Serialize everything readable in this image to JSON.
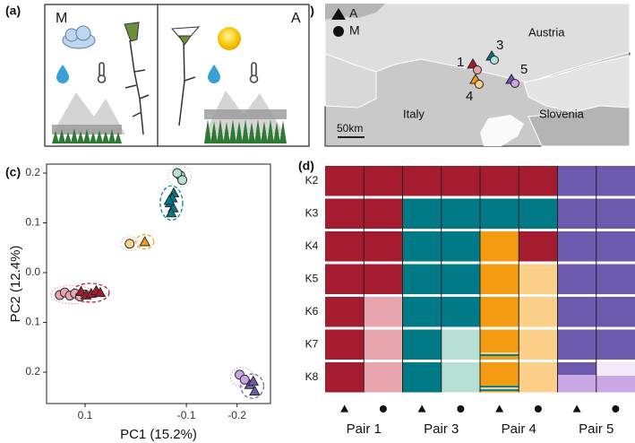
{
  "panel_labels": [
    "(a)",
    "(b)",
    "(c)",
    "(d)"
  ],
  "panel_a": {
    "left": "M",
    "right": "A"
  },
  "panel_b": {
    "legend": [
      "A",
      "M"
    ],
    "countries": [
      "Austria",
      "Italy",
      "Slovenia"
    ],
    "scale": "50km",
    "sites": [
      "1",
      "3",
      "4",
      "5"
    ]
  },
  "chart_data": [
    {
      "type": "scatter",
      "xlabel": "PC1 (15.2%)",
      "ylabel": "PC2 (12.4%)",
      "xlim": [
        0.176,
        -0.266
      ],
      "ylim": [
        -0.263,
        0.218
      ],
      "xticks": [
        0.1,
        -0.1,
        -0.2
      ],
      "yticks": [
        0.2,
        0.1,
        {
          "value": 0,
          "label": "0.0"
        },
        {
          "value": -0.1,
          "label": "0.1"
        },
        {
          "value": -0.2,
          "label": "0.2"
        }
      ],
      "series": [
        {
          "color": "#e8a5ae",
          "marker": "circle",
          "x": [
            0.15,
            0.14,
            0.13,
            0.12,
            0.11,
            0.1
          ],
          "y": [
            -0.045,
            -0.04,
            -0.046,
            -0.042,
            -0.048,
            -0.044
          ]
        },
        {
          "color": "#a51c30",
          "marker": "triangle",
          "x": [
            0.108,
            0.098,
            0.088,
            0.078,
            0.07
          ],
          "y": [
            -0.038,
            -0.045,
            -0.042,
            -0.036,
            -0.04
          ]
        },
        {
          "color": "#fcd088",
          "marker": "circle",
          "x": [
            0.012
          ],
          "y": [
            0.058
          ]
        },
        {
          "color": "#f39c12",
          "marker": "triangle",
          "x": [
            -0.018
          ],
          "y": [
            0.062
          ]
        },
        {
          "color": "#b5e0d3",
          "marker": "circle",
          "x": [
            -0.088,
            -0.082,
            -0.092
          ],
          "y": [
            0.195,
            0.2,
            0.186
          ]
        },
        {
          "color": "#007a87",
          "marker": "triangle",
          "x": [
            -0.075,
            -0.072,
            -0.068,
            -0.074,
            -0.07,
            -0.066
          ],
          "y": [
            0.16,
            0.15,
            0.14,
            0.13,
            0.12,
            0.145
          ]
        },
        {
          "color": "#c9a6e4",
          "marker": "circle",
          "x": [
            -0.205,
            -0.215
          ],
          "y": [
            -0.205,
            -0.215
          ]
        },
        {
          "color": "#6b5aad",
          "marker": "triangle",
          "x": [
            -0.225,
            -0.235,
            -0.232
          ],
          "y": [
            -0.225,
            -0.238,
            -0.218
          ]
        }
      ]
    },
    {
      "type": "admixture",
      "colors": [
        "#a51c30",
        "#007a87",
        "#f39c12",
        "#6b5aad",
        "#e8a5ae",
        "#fcd088",
        "#b5e0d3",
        "#c9a6e4",
        "#f1eaf8"
      ],
      "columns": [
        "A",
        "M",
        "A",
        "M",
        "A",
        "M",
        "A",
        "M"
      ],
      "pairs": [
        "Pair 1",
        "Pair 3",
        "Pair 4",
        "Pair 5"
      ],
      "rows": [
        {
          "name": "K2",
          "cells": [
            {
              "clusters": [
                0
              ],
              "values": [
                1
              ]
            },
            {
              "clusters": [
                0
              ],
              "values": [
                1
              ]
            },
            {
              "clusters": [
                0
              ],
              "values": [
                1
              ]
            },
            {
              "clusters": [
                0
              ],
              "values": [
                1
              ]
            },
            {
              "clusters": [
                0
              ],
              "values": [
                1
              ]
            },
            {
              "clusters": [
                0
              ],
              "values": [
                1
              ]
            },
            {
              "clusters": [
                3
              ],
              "values": [
                1
              ]
            },
            {
              "clusters": [
                3
              ],
              "values": [
                1
              ]
            }
          ]
        },
        {
          "name": "K3",
          "cells": [
            {
              "clusters": [
                0
              ],
              "values": [
                1
              ]
            },
            {
              "clusters": [
                0
              ],
              "values": [
                1
              ]
            },
            {
              "clusters": [
                1
              ],
              "values": [
                1
              ]
            },
            {
              "clusters": [
                1
              ],
              "values": [
                1
              ]
            },
            {
              "clusters": [
                1
              ],
              "values": [
                1
              ]
            },
            {
              "clusters": [
                1
              ],
              "values": [
                1
              ]
            },
            {
              "clusters": [
                3
              ],
              "values": [
                1
              ]
            },
            {
              "clusters": [
                3
              ],
              "values": [
                1
              ]
            }
          ]
        },
        {
          "name": "K4",
          "cells": [
            {
              "clusters": [
                0
              ],
              "values": [
                1
              ]
            },
            {
              "clusters": [
                0
              ],
              "values": [
                1
              ]
            },
            {
              "clusters": [
                1
              ],
              "values": [
                1
              ]
            },
            {
              "clusters": [
                1
              ],
              "values": [
                1
              ]
            },
            {
              "clusters": [
                2
              ],
              "values": [
                1
              ]
            },
            {
              "clusters": [
                0
              ],
              "values": [
                1
              ]
            },
            {
              "clusters": [
                3
              ],
              "values": [
                1
              ]
            },
            {
              "clusters": [
                3
              ],
              "values": [
                1
              ]
            }
          ]
        },
        {
          "name": "K5",
          "cells": [
            {
              "clusters": [
                0
              ],
              "values": [
                1
              ]
            },
            {
              "clusters": [
                0
              ],
              "values": [
                1
              ]
            },
            {
              "clusters": [
                1
              ],
              "values": [
                1
              ]
            },
            {
              "clusters": [
                1
              ],
              "values": [
                1
              ]
            },
            {
              "clusters": [
                2
              ],
              "values": [
                1
              ]
            },
            {
              "clusters": [
                5
              ],
              "values": [
                1
              ]
            },
            {
              "clusters": [
                3
              ],
              "values": [
                1
              ]
            },
            {
              "clusters": [
                3
              ],
              "values": [
                1
              ]
            }
          ]
        },
        {
          "name": "K6",
          "cells": [
            {
              "clusters": [
                0
              ],
              "values": [
                1
              ]
            },
            {
              "clusters": [
                4
              ],
              "values": [
                1
              ]
            },
            {
              "clusters": [
                1
              ],
              "values": [
                1
              ]
            },
            {
              "clusters": [
                1
              ],
              "values": [
                1
              ]
            },
            {
              "clusters": [
                2
              ],
              "values": [
                1
              ]
            },
            {
              "clusters": [
                5
              ],
              "values": [
                1
              ]
            },
            {
              "clusters": [
                3
              ],
              "values": [
                1
              ]
            },
            {
              "clusters": [
                3
              ],
              "values": [
                1
              ]
            }
          ]
        },
        {
          "name": "K7",
          "cells": [
            {
              "clusters": [
                0
              ],
              "values": [
                1
              ]
            },
            {
              "clusters": [
                4
              ],
              "values": [
                1
              ]
            },
            {
              "clusters": [
                1
              ],
              "values": [
                1
              ]
            },
            {
              "clusters": [
                6
              ],
              "values": [
                1
              ]
            },
            {
              "clusters": [
                2,
                5,
                1,
                2
              ],
              "values": [
                0.76,
                0.06,
                0.06,
                0.12
              ]
            },
            {
              "clusters": [
                5
              ],
              "values": [
                1
              ]
            },
            {
              "clusters": [
                3
              ],
              "values": [
                1
              ]
            },
            {
              "clusters": [
                3
              ],
              "values": [
                1
              ]
            }
          ]
        },
        {
          "name": "K8",
          "cells": [
            {
              "clusters": [
                0
              ],
              "values": [
                1
              ]
            },
            {
              "clusters": [
                4
              ],
              "values": [
                1
              ]
            },
            {
              "clusters": [
                1
              ],
              "values": [
                1
              ]
            },
            {
              "clusters": [
                6
              ],
              "values": [
                1
              ]
            },
            {
              "clusters": [
                2,
                1,
                5,
                1,
                2
              ],
              "values": [
                0.78,
                0.06,
                0.06,
                0.06,
                0.04
              ]
            },
            {
              "clusters": [
                5
              ],
              "values": [
                1
              ]
            },
            {
              "clusters": [
                3,
                7
              ],
              "values": [
                0.42,
                0.58
              ]
            },
            {
              "clusters": [
                8,
                7
              ],
              "values": [
                0.45,
                0.55
              ]
            }
          ]
        }
      ]
    }
  ]
}
